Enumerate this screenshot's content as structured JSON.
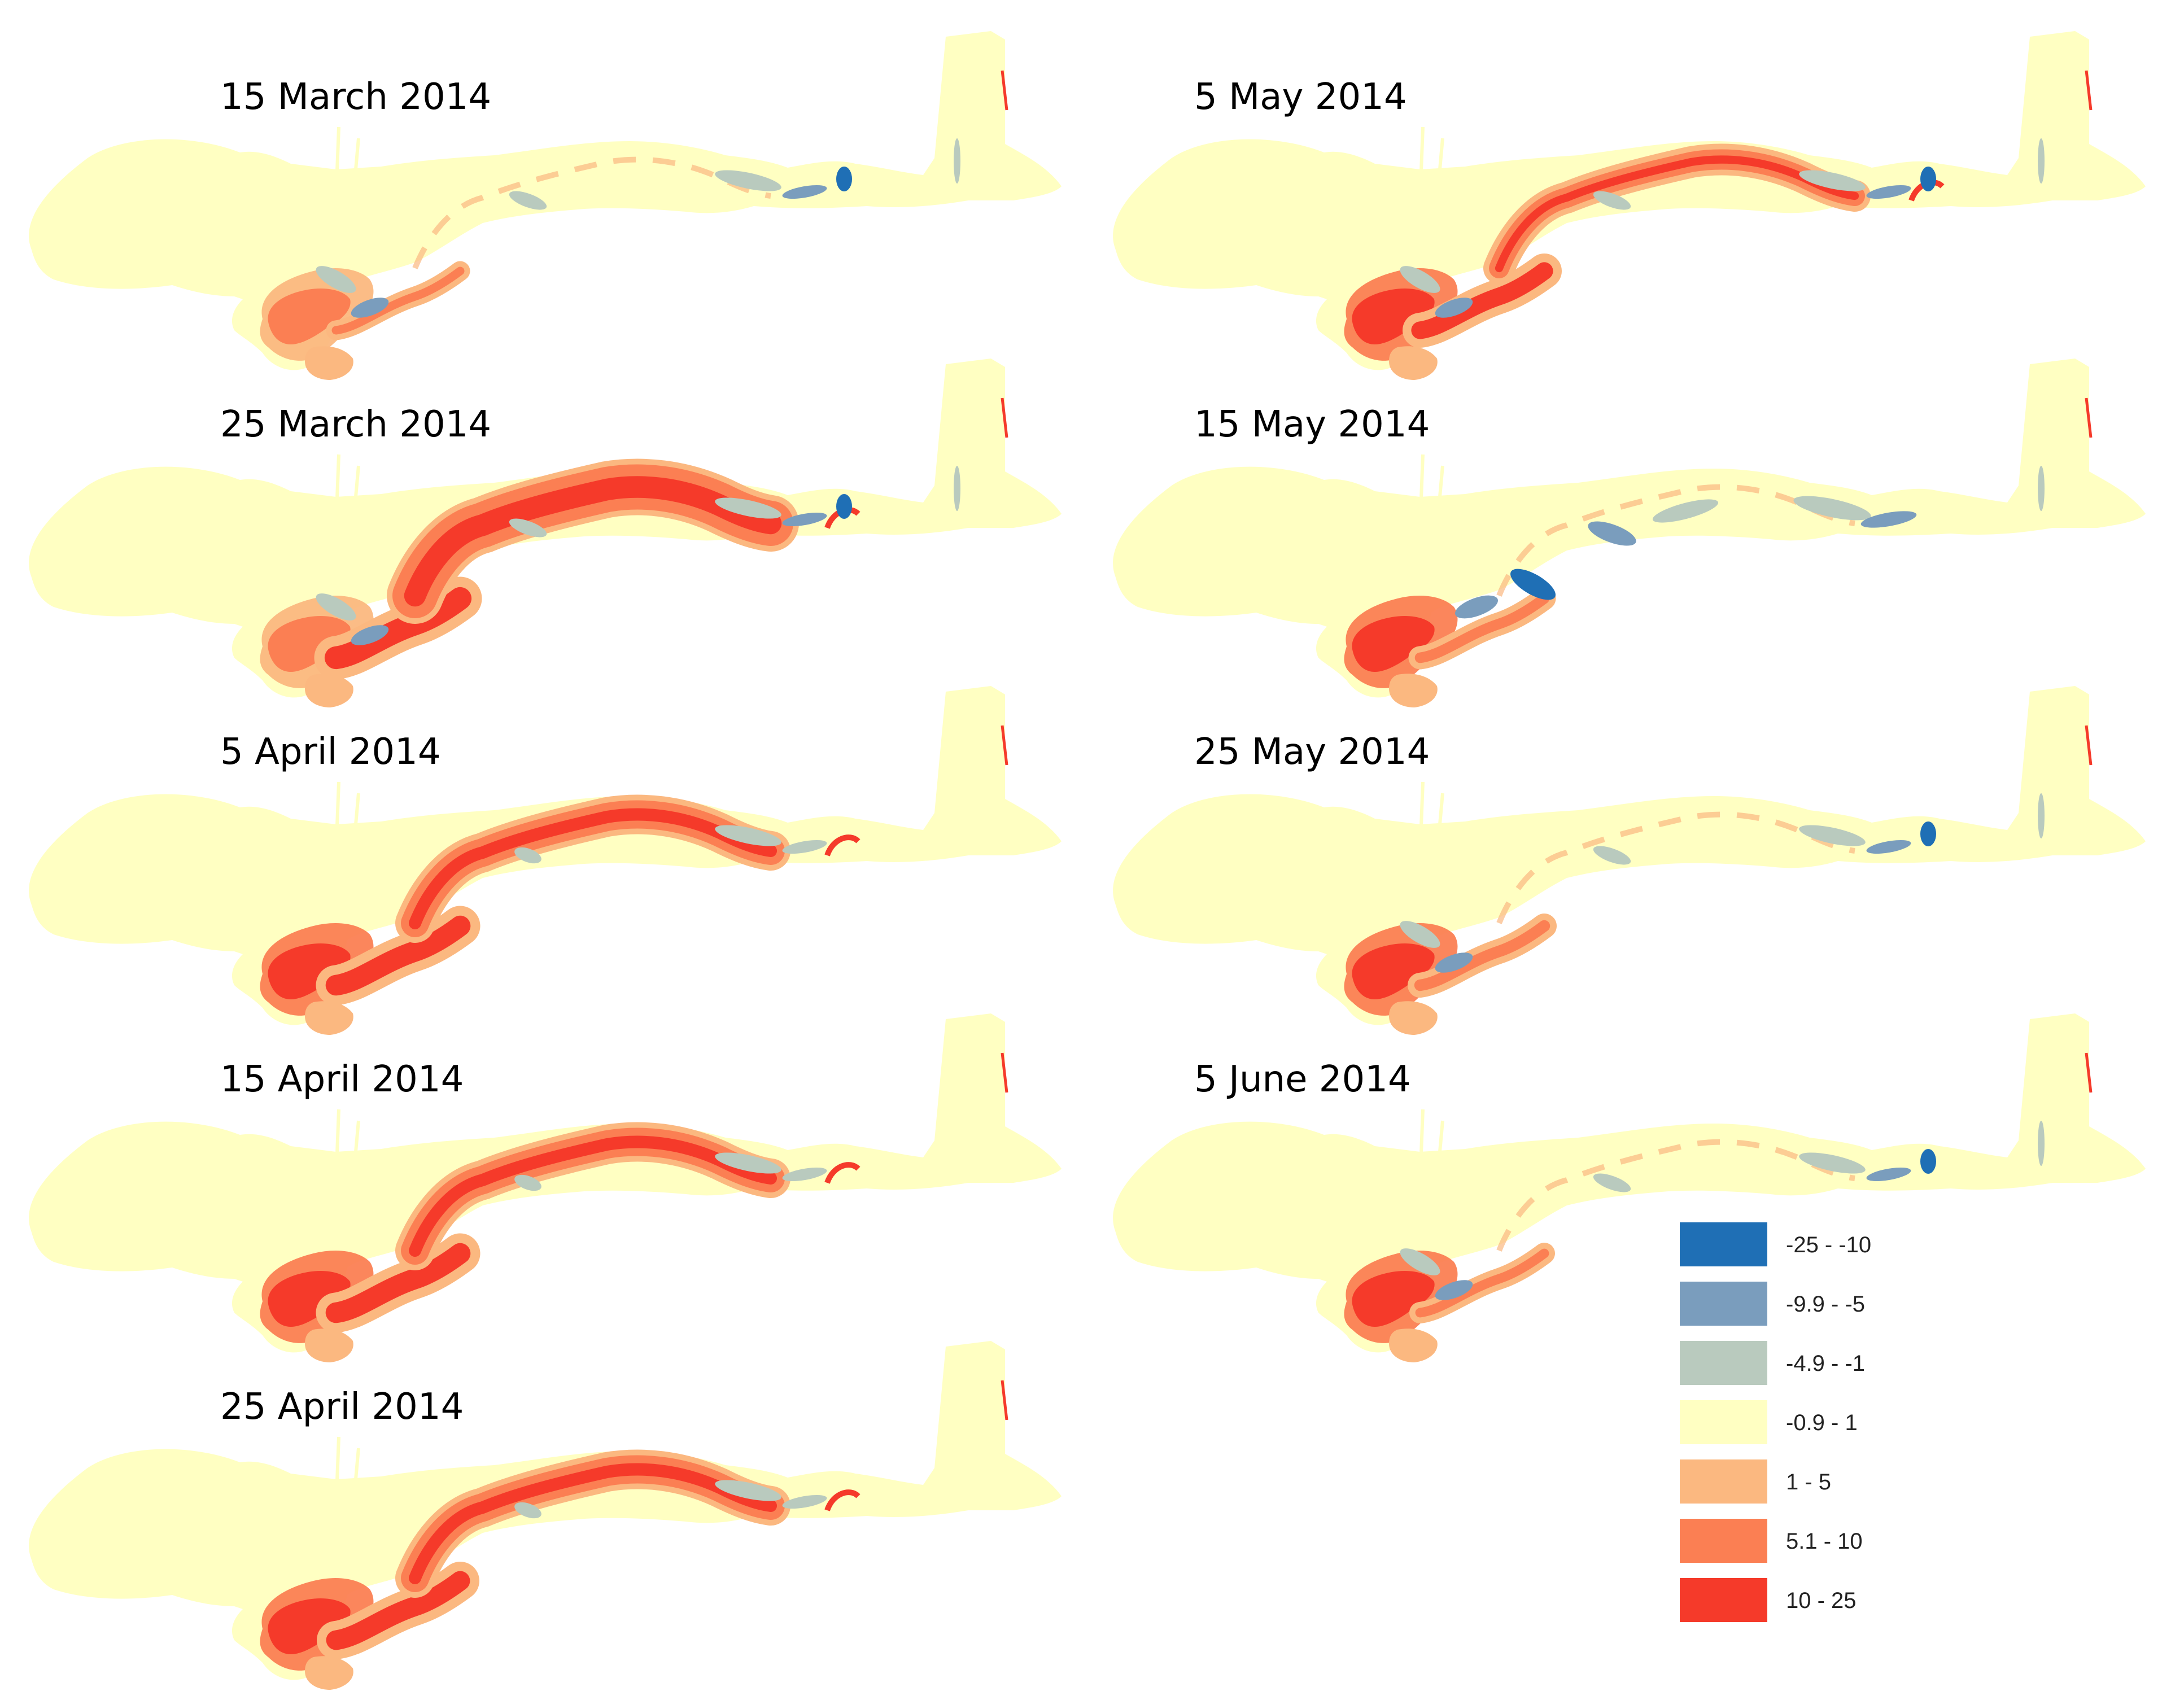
{
  "panels": [
    {
      "id": "p1",
      "title": "15 March 2014",
      "spread": 0.25,
      "channel": "none",
      "tidal": 0.15,
      "negative": "medium"
    },
    {
      "id": "p2",
      "title": "25 March 2014",
      "spread": 0.95,
      "channel": "wide",
      "tidal": 0.3,
      "negative": "medium"
    },
    {
      "id": "p3",
      "title": "5 April 2014",
      "spread": 0.85,
      "channel": "narrow",
      "tidal": 0.85,
      "negative": "low"
    },
    {
      "id": "p4",
      "title": "15 April 2014",
      "spread": 0.85,
      "channel": "narrow",
      "tidal": 0.85,
      "negative": "low"
    },
    {
      "id": "p5",
      "title": "25 April 2014",
      "spread": 0.8,
      "channel": "narrow",
      "tidal": 0.8,
      "negative": "low"
    },
    {
      "id": "p6",
      "title": "5 May 2014",
      "spread": 0.7,
      "channel": "thin",
      "tidal": 0.8,
      "negative": "medium"
    },
    {
      "id": "p7",
      "title": "15 May 2014",
      "spread": 0.35,
      "channel": "none",
      "tidal": 0.8,
      "negative": "high"
    },
    {
      "id": "p8",
      "title": "25 May 2014",
      "spread": 0.4,
      "channel": "none",
      "tidal": 0.75,
      "negative": "medium"
    },
    {
      "id": "p9",
      "title": "5 June 2014",
      "spread": 0.3,
      "channel": "none",
      "tidal": 0.7,
      "negative": "medium"
    }
  ],
  "legend": {
    "items": [
      {
        "label": "-25 - -10",
        "color": "#1f6fb5"
      },
      {
        "label": "-9.9 - -5",
        "color": "#7a9dbd"
      },
      {
        "label": "-4.9 - -1",
        "color": "#b9cabe"
      },
      {
        "label": "-0.9 - 1",
        "color": "#ffffc2"
      },
      {
        "label": "1 - 5",
        "color": "#fbb880"
      },
      {
        "label": "5.1 - 10",
        "color": "#fb7f53"
      },
      {
        "label": "10 - 25",
        "color": "#f53a2a"
      }
    ]
  }
}
